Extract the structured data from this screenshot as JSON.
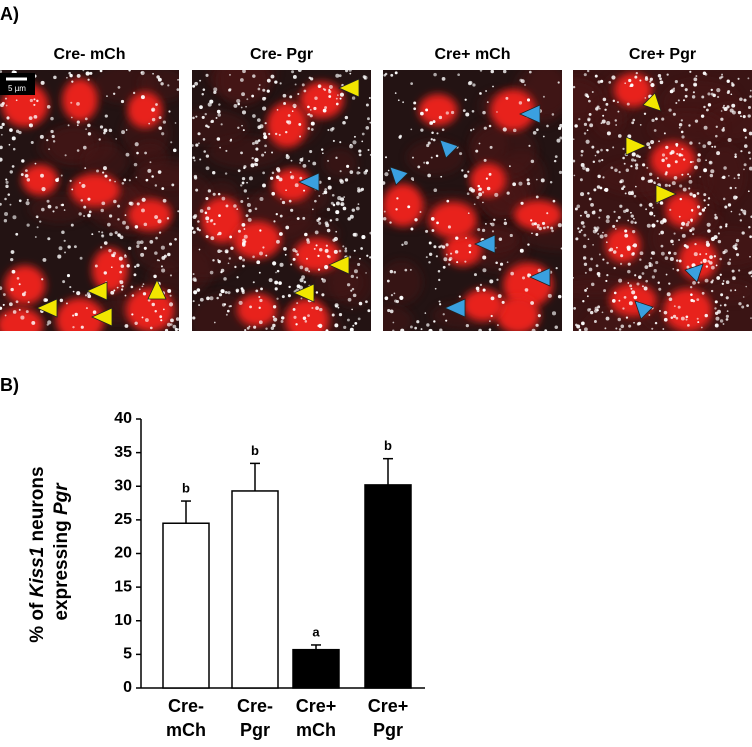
{
  "panel_a": {
    "label": "A)",
    "scale_bar": "5 µm",
    "panels": [
      "Cre- mCh",
      "Cre- Pgr",
      "Cre+ mCh",
      "Cre+ Pgr"
    ]
  },
  "chart_data": {
    "type": "bar",
    "label": "B)",
    "y_label": [
      [
        "% of ",
        "Kiss1",
        " neurons"
      ],
      [
        "expressing ",
        "Pgr"
      ]
    ],
    "categories": [
      [
        "Cre-",
        "mCh"
      ],
      [
        "Cre-",
        "Pgr"
      ],
      [
        "Cre+",
        "mCh"
      ],
      [
        "Cre+",
        "Pgr"
      ]
    ],
    "values": [
      24.5,
      29.3,
      5.7,
      30.2
    ],
    "errors": [
      3.3,
      4.1,
      0.7,
      3.9
    ],
    "annotations": [
      "b",
      "b",
      "a",
      "b"
    ],
    "colors": [
      "#ffffff",
      "#ffffff",
      "#000000",
      "#000000"
    ],
    "ylim": [
      0,
      40
    ],
    "yticks": [
      0,
      5,
      10,
      15,
      20,
      25,
      30,
      35,
      40
    ]
  }
}
